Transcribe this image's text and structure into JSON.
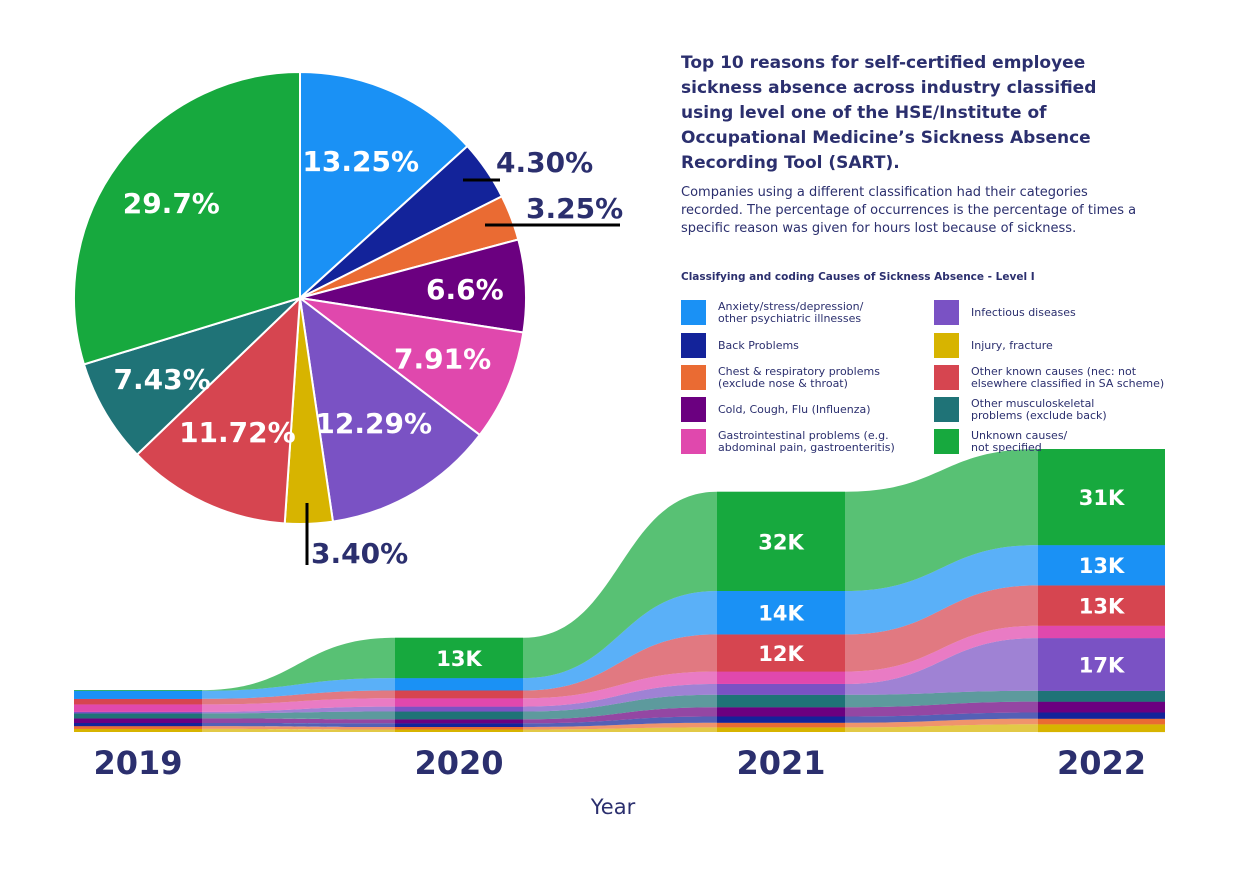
{
  "header": {
    "title": "Top 10 reasons for self-certified employee sickness absence across industry classified using level one of the HSE/Institute of Occupational Medicine’s Sickness Absence Recording Tool (SART).",
    "subtitle": "Companies using a different classification had their categories recorded. The percentage of occurrences is the percentage of times a specific reason was given for hours lost because of sickness."
  },
  "legend": {
    "title": "Classifying and coding Causes of Sickness Absence - Level I",
    "items": [
      {
        "label": "Anxiety/stress/depression/\nother psychiatric illnesses",
        "color": "#1a91f5"
      },
      {
        "label": "Back Problems",
        "color": "#13239a"
      },
      {
        "label": "Chest & respiratory problems\n(exclude nose & throat)",
        "color": "#ea6b33"
      },
      {
        "label": "Cold, Cough, Flu (Influenza)",
        "color": "#6b0080"
      },
      {
        "label": "Gastrointestinal problems (e.g.\nabdominal pain, gastroenteritis)",
        "color": "#e048ad"
      },
      {
        "label": "Infectious diseases",
        "color": "#7a52c4"
      },
      {
        "label": "Injury, fracture",
        "color": "#d7b400"
      },
      {
        "label": "Other known causes (nec: not\nelsewhere classified in SA scheme)",
        "color": "#d64550"
      },
      {
        "label": "Other musculoskeletal\nproblems (exclude back)",
        "color": "#1f7377"
      },
      {
        "label": "Unknown causes/\nnot specified",
        "color": "#17a93e"
      }
    ]
  },
  "chart_data": [
    {
      "type": "pie",
      "title": "",
      "slices": [
        {
          "category": "Anxiety/stress/depression/other psychiatric illnesses",
          "value": 13.25,
          "label": "13.25%",
          "color": "#1a91f5"
        },
        {
          "category": "Back Problems",
          "value": 4.3,
          "label": "4.30%",
          "color": "#13239a"
        },
        {
          "category": "Chest & respiratory problems (exclude nose & throat)",
          "value": 3.25,
          "label": "3.25%",
          "color": "#ea6b33"
        },
        {
          "category": "Cold, Cough, Flu (Influenza)",
          "value": 6.6,
          "label": "6.6%",
          "color": "#6b0080"
        },
        {
          "category": "Gastrointestinal problems",
          "value": 7.91,
          "label": "7.91%",
          "color": "#e048ad"
        },
        {
          "category": "Infectious diseases",
          "value": 12.29,
          "label": "12.29%",
          "color": "#7a52c4"
        },
        {
          "category": "Injury, fracture",
          "value": 3.4,
          "label": "3.40%",
          "color": "#d7b400"
        },
        {
          "category": "Other known causes",
          "value": 11.72,
          "label": "11.72%",
          "color": "#d64550"
        },
        {
          "category": "Other musculoskeletal problems (exclude back)",
          "value": 7.43,
          "label": "7.43%",
          "color": "#1f7377"
        },
        {
          "category": "Unknown causes/not specified",
          "value": 29.7,
          "label": "29.7%",
          "color": "#17a93e"
        }
      ]
    },
    {
      "type": "area",
      "xlabel": "Year",
      "ylabel": "",
      "x": [
        "2019",
        "2020",
        "2021",
        "2022"
      ],
      "series": [
        {
          "category": "Injury, fracture",
          "color": "#d7b400",
          "values": [
            1000,
            800,
            1500,
            2500
          ]
        },
        {
          "category": "Chest & respiratory problems (exclude nose & throat)",
          "color": "#ea6b33",
          "values": [
            900,
            800,
            1500,
            1800
          ]
        },
        {
          "category": "Back Problems",
          "color": "#13239a",
          "values": [
            1000,
            1200,
            2000,
            2000
          ]
        },
        {
          "category": "Cold, Cough, Flu (Influenza)",
          "color": "#6b0080",
          "values": [
            1500,
            1300,
            3000,
            3500
          ]
        },
        {
          "category": "Other musculoskeletal problems (exclude back)",
          "color": "#1f7377",
          "values": [
            1600,
            2500,
            4000,
            3500
          ]
        },
        {
          "category": "Infectious diseases",
          "color": "#7a52c4",
          "values": [
            500,
            1600,
            3500,
            17000
          ],
          "label": "17K"
        },
        {
          "category": "Gastrointestinal problems",
          "color": "#e048ad",
          "values": [
            2400,
            2700,
            4000,
            4000
          ]
        },
        {
          "category": "Other known causes",
          "color": "#d64550",
          "values": [
            1800,
            2500,
            12000,
            13000
          ],
          "label": "12K|13K"
        },
        {
          "category": "Anxiety/stress/depression/other psychiatric illnesses",
          "color": "#1a91f5",
          "values": [
            2600,
            4000,
            14000,
            13000
          ],
          "label": "14K|13K"
        },
        {
          "category": "Unknown causes/not specified",
          "color": "#17a93e",
          "values": [
            200,
            13000,
            32000,
            31000
          ],
          "label": "13K|32K|31K"
        }
      ],
      "point_labels": [
        {
          "category": "Unknown causes/not specified",
          "x": "2020",
          "label": "13K"
        },
        {
          "category": "Unknown causes/not specified",
          "x": "2021",
          "label": "32K"
        },
        {
          "category": "Anxiety/stress/depression/other psychiatric illnesses",
          "x": "2021",
          "label": "14K"
        },
        {
          "category": "Other known causes",
          "x": "2021",
          "label": "12K"
        },
        {
          "category": "Unknown causes/not specified",
          "x": "2022",
          "label": "31K"
        },
        {
          "category": "Infectious diseases",
          "x": "2022",
          "label": "17K"
        },
        {
          "category": "Anxiety/stress/depression/other psychiatric illnesses",
          "x": "2022",
          "label": "13K"
        },
        {
          "category": "Other known causes",
          "x": "2022",
          "label": "13K"
        }
      ]
    }
  ]
}
